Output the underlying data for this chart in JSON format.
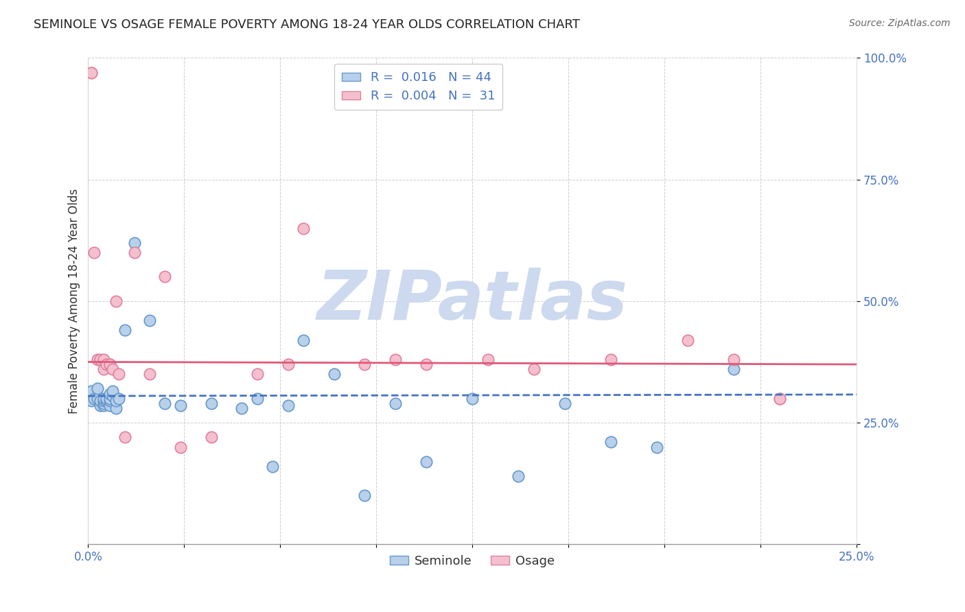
{
  "title": "SEMINOLE VS OSAGE FEMALE POVERTY AMONG 18-24 YEAR OLDS CORRELATION CHART",
  "source": "Source: ZipAtlas.com",
  "ylabel": "Female Poverty Among 18-24 Year Olds",
  "xlim": [
    0.0,
    0.25
  ],
  "ylim": [
    0.0,
    1.0
  ],
  "xticks": [
    0.0,
    0.03125,
    0.0625,
    0.09375,
    0.125,
    0.15625,
    0.1875,
    0.21875,
    0.25
  ],
  "yticks": [
    0.0,
    0.25,
    0.5,
    0.75,
    1.0
  ],
  "ytick_labels": [
    "",
    "25.0%",
    "50.0%",
    "75.0%",
    "100.0%"
  ],
  "xtick_labels_show": [
    "0.0%",
    "",
    "",
    "",
    "",
    "",
    "",
    "",
    "25.0%"
  ],
  "seminole_R": 0.016,
  "seminole_N": 44,
  "osage_R": 0.004,
  "osage_N": 31,
  "seminole_color": "#b8d0ea",
  "seminole_edge_color": "#6699cc",
  "osage_color": "#f5c0ce",
  "osage_edge_color": "#e080a0",
  "trend_seminole_color": "#4472c4",
  "trend_osage_color": "#e05878",
  "watermark_color": "#ccd9ee",
  "seminole_trend_y0": 0.305,
  "seminole_trend_y1": 0.308,
  "osage_trend_y0": 0.375,
  "osage_trend_y1": 0.37,
  "seminole_x": [
    0.001,
    0.001,
    0.002,
    0.003,
    0.003,
    0.004,
    0.004,
    0.005,
    0.005,
    0.005,
    0.005,
    0.006,
    0.006,
    0.007,
    0.007,
    0.007,
    0.007,
    0.008,
    0.008,
    0.009,
    0.009,
    0.01,
    0.012,
    0.015,
    0.02,
    0.025,
    0.03,
    0.04,
    0.05,
    0.055,
    0.06,
    0.065,
    0.07,
    0.08,
    0.09,
    0.1,
    0.11,
    0.125,
    0.14,
    0.155,
    0.17,
    0.185,
    0.21,
    0.225
  ],
  "seminole_y": [
    0.295,
    0.315,
    0.3,
    0.3,
    0.32,
    0.285,
    0.295,
    0.285,
    0.29,
    0.295,
    0.3,
    0.295,
    0.3,
    0.285,
    0.295,
    0.3,
    0.31,
    0.305,
    0.315,
    0.28,
    0.295,
    0.3,
    0.44,
    0.62,
    0.46,
    0.29,
    0.285,
    0.29,
    0.28,
    0.3,
    0.16,
    0.285,
    0.42,
    0.35,
    0.1,
    0.29,
    0.17,
    0.3,
    0.14,
    0.29,
    0.21,
    0.2,
    0.36,
    0.3
  ],
  "osage_x": [
    0.001,
    0.001,
    0.002,
    0.003,
    0.004,
    0.005,
    0.005,
    0.006,
    0.007,
    0.007,
    0.008,
    0.009,
    0.01,
    0.012,
    0.015,
    0.02,
    0.025,
    0.03,
    0.04,
    0.055,
    0.065,
    0.07,
    0.09,
    0.1,
    0.11,
    0.13,
    0.145,
    0.17,
    0.195,
    0.21,
    0.225
  ],
  "osage_y": [
    0.97,
    0.97,
    0.6,
    0.38,
    0.38,
    0.38,
    0.36,
    0.37,
    0.37,
    0.37,
    0.36,
    0.5,
    0.35,
    0.22,
    0.6,
    0.35,
    0.55,
    0.2,
    0.22,
    0.35,
    0.37,
    0.65,
    0.37,
    0.38,
    0.37,
    0.38,
    0.36,
    0.38,
    0.42,
    0.38,
    0.3
  ]
}
